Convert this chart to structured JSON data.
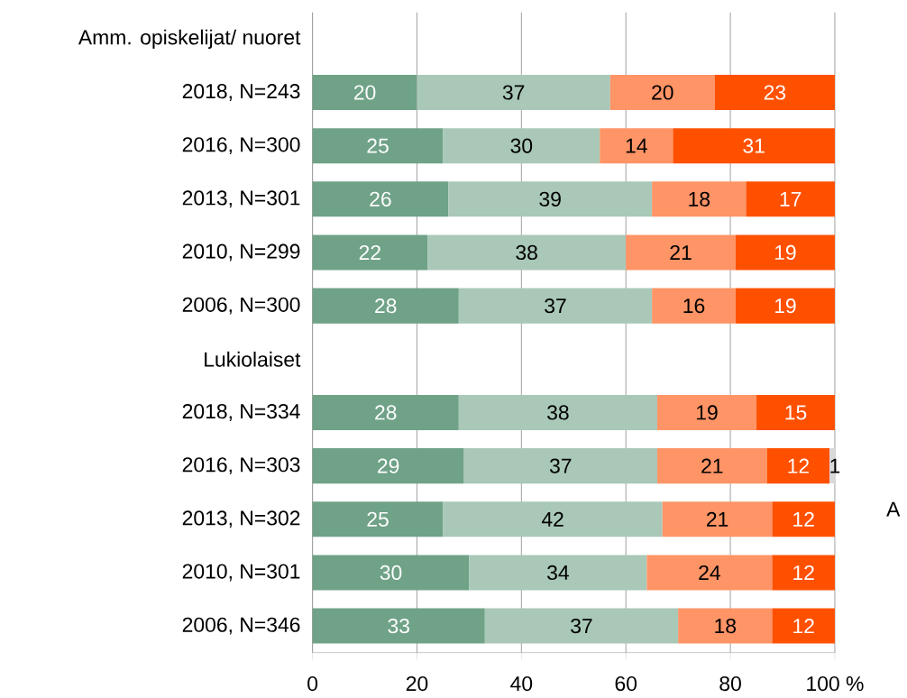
{
  "chart_data": {
    "type": "bar",
    "orientation": "horizontal",
    "stacked": true,
    "data_labels": true,
    "grid": "x",
    "categories": [
      "Amm. opiskelijat/ nuoret",
      "2018, N=243",
      "2016, N=300",
      "2013, N=301",
      "2010, N=299",
      "2006, N=300",
      "Lukiolaiset",
      "2018, N=334",
      "2016, N=303",
      "2013, N=302",
      "2010, N=301",
      "2006, N=346"
    ],
    "series": [
      {
        "color": "#6fa287",
        "values": [
          null,
          20,
          25,
          26,
          22,
          28,
          null,
          28,
          29,
          25,
          30,
          33
        ]
      },
      {
        "color": "#a9c8b8",
        "values": [
          null,
          37,
          30,
          39,
          38,
          37,
          null,
          38,
          37,
          42,
          34,
          37
        ]
      },
      {
        "color": "#ff9466",
        "values": [
          null,
          20,
          14,
          18,
          21,
          16,
          null,
          19,
          21,
          21,
          24,
          18
        ]
      },
      {
        "color": "#ff5000",
        "values": [
          null,
          23,
          31,
          17,
          19,
          19,
          null,
          15,
          12,
          12,
          12,
          12
        ]
      },
      {
        "color": "#d9d9d9",
        "values": [
          null,
          null,
          null,
          null,
          null,
          null,
          null,
          null,
          1,
          null,
          null,
          null
        ]
      }
    ],
    "xlim": [
      0,
      100
    ],
    "xticks": [
      0,
      20,
      40,
      60,
      80,
      {
        "value": 100,
        "label": "100 %"
      }
    ],
    "annotations": [
      "A"
    ]
  }
}
